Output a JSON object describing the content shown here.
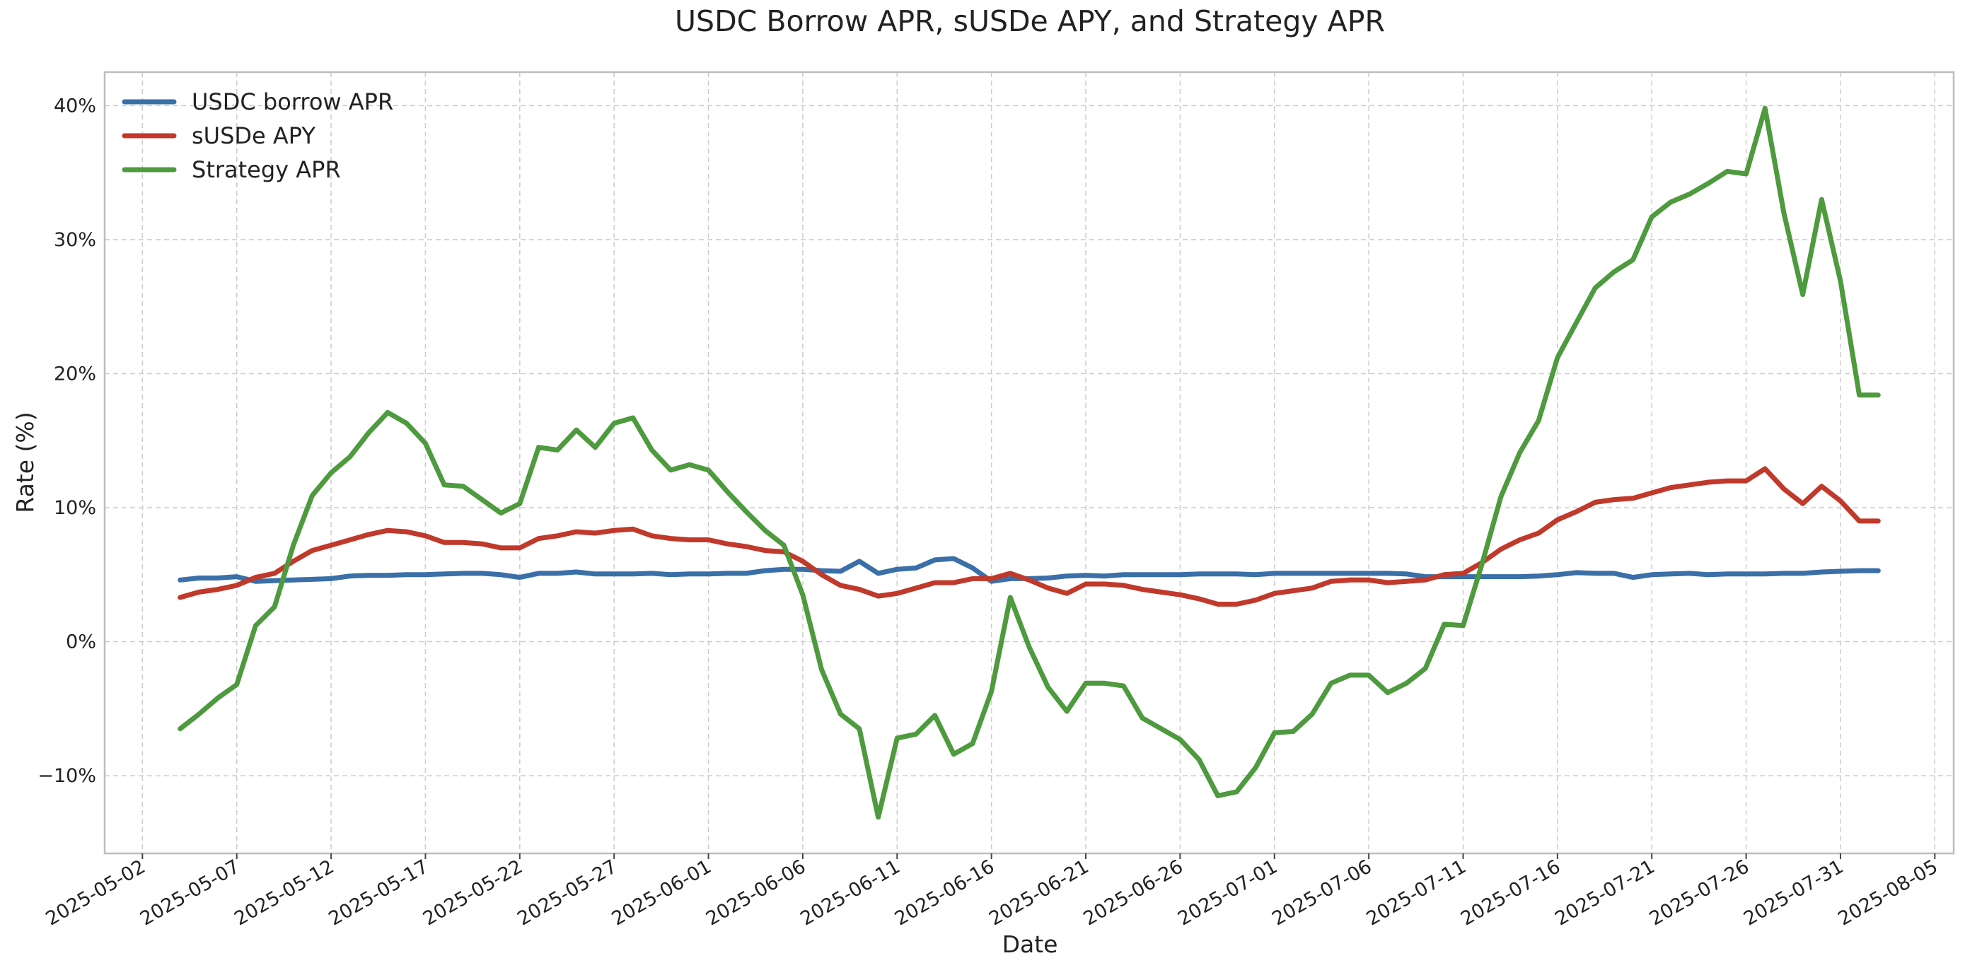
{
  "chart_data": {
    "type": "line",
    "title": "USDC Borrow APR, sUSDe APY, and Strategy APR",
    "xlabel": "Date",
    "ylabel": "Rate (%)",
    "x_ticks": [
      "2025-05-02",
      "2025-05-07",
      "2025-05-12",
      "2025-05-17",
      "2025-05-22",
      "2025-05-27",
      "2025-06-01",
      "2025-06-06",
      "2025-06-11",
      "2025-06-16",
      "2025-06-21",
      "2025-06-26",
      "2025-07-01",
      "2025-07-06",
      "2025-07-11",
      "2025-07-16",
      "2025-07-21",
      "2025-07-26",
      "2025-07-31",
      "2025-08-05"
    ],
    "y_ticks": [
      -10,
      0,
      10,
      20,
      30,
      40
    ],
    "y_tick_labels": [
      "−10%",
      "0%",
      "10%",
      "20%",
      "30%",
      "40%"
    ],
    "xlim": [
      "2025-04-30",
      "2025-08-06"
    ],
    "ylim": [
      -15.8,
      42.5
    ],
    "grid": true,
    "legend_position": "top-left",
    "x": [
      "2025-05-04",
      "2025-05-05",
      "2025-05-06",
      "2025-05-07",
      "2025-05-08",
      "2025-05-09",
      "2025-05-10",
      "2025-05-11",
      "2025-05-12",
      "2025-05-13",
      "2025-05-14",
      "2025-05-15",
      "2025-05-16",
      "2025-05-17",
      "2025-05-18",
      "2025-05-19",
      "2025-05-20",
      "2025-05-21",
      "2025-05-22",
      "2025-05-23",
      "2025-05-24",
      "2025-05-25",
      "2025-05-26",
      "2025-05-27",
      "2025-05-28",
      "2025-05-29",
      "2025-05-30",
      "2025-05-31",
      "2025-06-01",
      "2025-06-02",
      "2025-06-03",
      "2025-06-04",
      "2025-06-05",
      "2025-06-06",
      "2025-06-07",
      "2025-06-08",
      "2025-06-09",
      "2025-06-10",
      "2025-06-11",
      "2025-06-12",
      "2025-06-13",
      "2025-06-14",
      "2025-06-15",
      "2025-06-16",
      "2025-06-17",
      "2025-06-18",
      "2025-06-19",
      "2025-06-20",
      "2025-06-21",
      "2025-06-22",
      "2025-06-23",
      "2025-06-24",
      "2025-06-25",
      "2025-06-26",
      "2025-06-27",
      "2025-06-28",
      "2025-06-29",
      "2025-06-30",
      "2025-07-01",
      "2025-07-02",
      "2025-07-03",
      "2025-07-04",
      "2025-07-05",
      "2025-07-06",
      "2025-07-07",
      "2025-07-08",
      "2025-07-09",
      "2025-07-10",
      "2025-07-11",
      "2025-07-12",
      "2025-07-13",
      "2025-07-14",
      "2025-07-15",
      "2025-07-16",
      "2025-07-17",
      "2025-07-18",
      "2025-07-19",
      "2025-07-20",
      "2025-07-21",
      "2025-07-22",
      "2025-07-23",
      "2025-07-24",
      "2025-07-25",
      "2025-07-26",
      "2025-07-27",
      "2025-07-28",
      "2025-07-29",
      "2025-07-30",
      "2025-07-31",
      "2025-08-01",
      "2025-08-02"
    ],
    "series": [
      {
        "name": "USDC borrow APR",
        "color": "#3a6fa8",
        "values": [
          4.6,
          4.75,
          4.75,
          4.85,
          4.5,
          4.55,
          4.6,
          4.65,
          4.7,
          4.9,
          4.95,
          4.95,
          5.0,
          5.0,
          5.05,
          5.1,
          5.1,
          5.0,
          4.8,
          5.1,
          5.1,
          5.2,
          5.05,
          5.05,
          5.05,
          5.1,
          5.0,
          5.05,
          5.05,
          5.1,
          5.1,
          5.3,
          5.4,
          5.4,
          5.3,
          5.25,
          6.0,
          5.1,
          5.4,
          5.5,
          6.1,
          6.2,
          5.5,
          4.5,
          4.7,
          4.7,
          4.75,
          4.9,
          4.95,
          4.9,
          5.0,
          5.0,
          5.0,
          5.0,
          5.05,
          5.05,
          5.05,
          5.0,
          5.1,
          5.1,
          5.1,
          5.1,
          5.1,
          5.1,
          5.1,
          5.05,
          4.85,
          4.85,
          4.85,
          4.85,
          4.85,
          4.85,
          4.9,
          5.0,
          5.15,
          5.1,
          5.1,
          4.8,
          5.0,
          5.05,
          5.1,
          5.0,
          5.05,
          5.05,
          5.05,
          5.1,
          5.1,
          5.2,
          5.25,
          5.3,
          5.3
        ]
      },
      {
        "name": "sUSDe APY",
        "color": "#c0392b",
        "values": [
          3.3,
          3.7,
          3.9,
          4.2,
          4.8,
          5.1,
          6.0,
          6.8,
          7.2,
          7.6,
          8.0,
          8.3,
          8.2,
          7.9,
          7.4,
          7.4,
          7.3,
          7.0,
          7.0,
          7.7,
          7.9,
          8.2,
          8.1,
          8.3,
          8.4,
          7.9,
          7.7,
          7.6,
          7.6,
          7.3,
          7.1,
          6.8,
          6.7,
          6.0,
          5.0,
          4.2,
          3.9,
          3.4,
          3.6,
          4.0,
          4.4,
          4.4,
          4.7,
          4.7,
          5.1,
          4.6,
          4.0,
          3.6,
          4.3,
          4.3,
          4.2,
          3.9,
          3.7,
          3.5,
          3.2,
          2.8,
          2.8,
          3.1,
          3.6,
          3.8,
          4.0,
          4.5,
          4.6,
          4.6,
          4.4,
          4.5,
          4.6,
          5.0,
          5.1,
          5.9,
          6.9,
          7.6,
          8.1,
          9.1,
          9.7,
          10.4,
          10.6,
          10.7,
          11.1,
          11.5,
          11.7,
          11.9,
          12.0,
          12.0,
          12.9,
          11.4,
          10.3,
          11.6,
          10.5,
          9.0,
          9.0
        ]
      },
      {
        "name": "Strategy APR",
        "color": "#4e9a3e",
        "values": [
          -6.5,
          -5.4,
          -4.2,
          -3.2,
          1.2,
          2.6,
          7.2,
          10.9,
          12.6,
          13.8,
          15.6,
          17.1,
          16.3,
          14.8,
          11.7,
          11.6,
          10.6,
          9.6,
          10.3,
          14.5,
          14.3,
          15.8,
          14.5,
          16.3,
          16.7,
          14.3,
          12.8,
          13.2,
          12.8,
          11.2,
          9.7,
          8.3,
          7.2,
          3.5,
          -2.1,
          -5.4,
          -6.5,
          -13.1,
          -7.2,
          -6.9,
          -5.5,
          -8.4,
          -7.6,
          -3.7,
          3.3,
          -0.4,
          -3.4,
          -5.2,
          -3.1,
          -3.1,
          -3.3,
          -5.7,
          -6.5,
          -7.3,
          -8.8,
          -11.5,
          -11.2,
          -9.4,
          -6.8,
          -6.7,
          -5.4,
          -3.1,
          -2.5,
          -2.5,
          -3.8,
          -3.1,
          -2.0,
          1.3,
          1.2,
          5.8,
          10.8,
          14.1,
          16.5,
          21.2,
          23.8,
          26.4,
          27.6,
          28.5,
          31.7,
          32.8,
          33.4,
          34.2,
          35.1,
          34.9,
          39.8,
          32.0,
          25.9,
          33.0,
          26.9,
          18.4,
          18.4
        ]
      }
    ]
  }
}
